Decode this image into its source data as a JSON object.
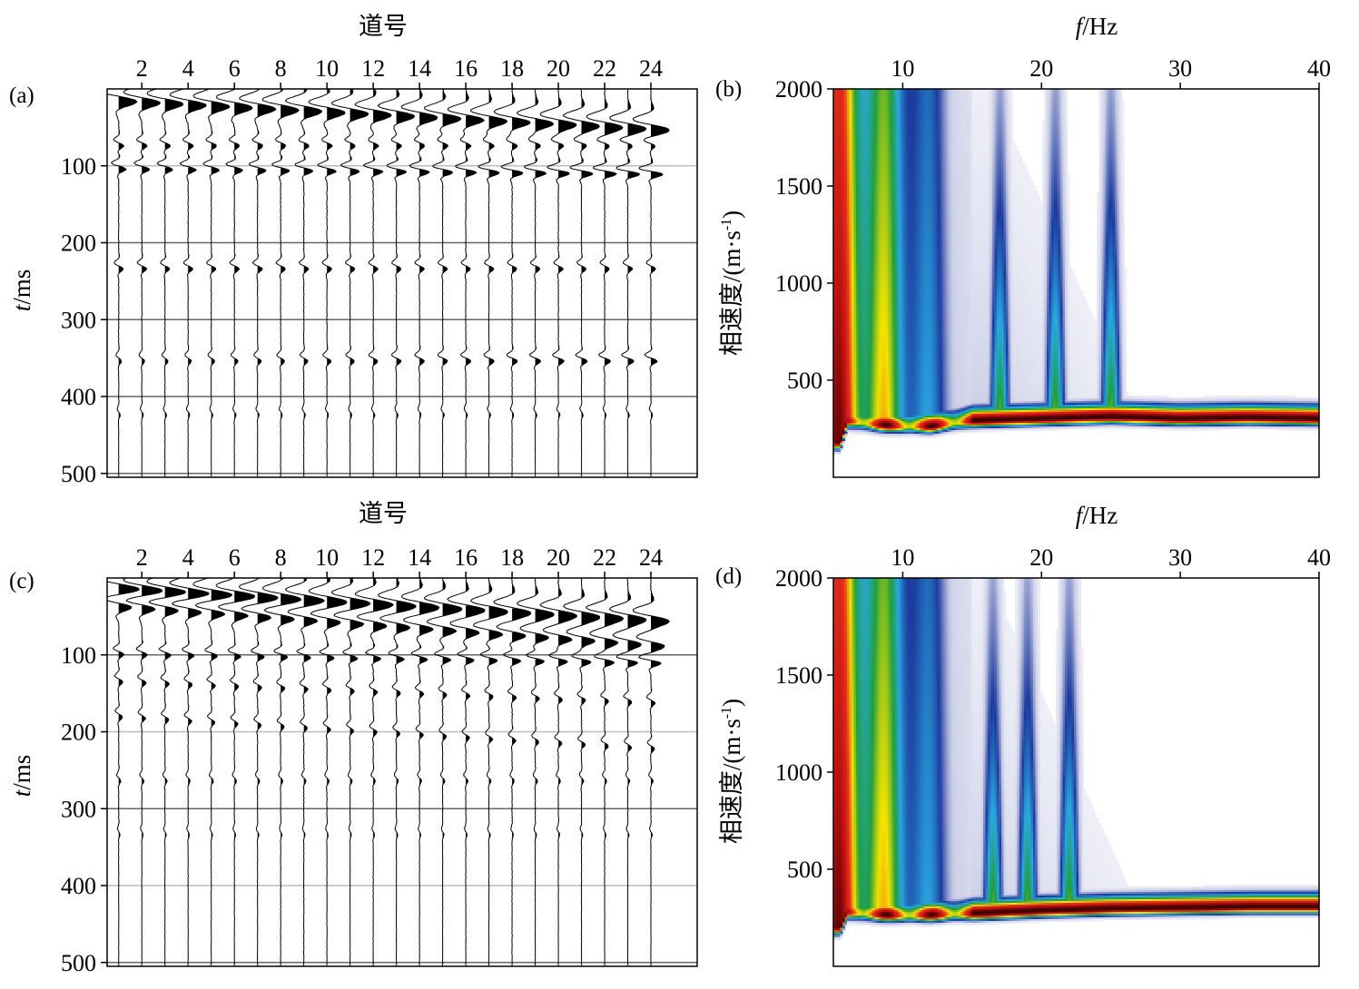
{
  "chart_data": [
    {
      "id": "a",
      "type": "seismic",
      "panel_label": "(a)",
      "xlabel": "道号",
      "ylabel_italic": "t",
      "ylabel_rest": "/ms",
      "x_ticks": [
        2,
        4,
        6,
        8,
        10,
        12,
        14,
        16,
        18,
        20,
        22,
        24
      ],
      "x_tick_labels": [
        "2",
        "4",
        "6",
        "8",
        "10",
        "12",
        "14",
        "16",
        "18",
        "20",
        "22",
        "24"
      ],
      "xlim": [
        0.5,
        26
      ],
      "y_ticks": [
        100,
        200,
        300,
        400,
        500
      ],
      "y_tick_labels": [
        "100",
        "200",
        "300",
        "400",
        "500"
      ],
      "ylim": [
        0,
        505
      ],
      "traces": 24,
      "grid": true
    },
    {
      "id": "b",
      "type": "heatmap",
      "panel_label": "(b)",
      "xlabel_italic": "f",
      "xlabel_rest": "/Hz",
      "ylabel": "相速度/(m·s",
      "ylabel_sup": "-1",
      "ylabel_close": ")",
      "x_ticks": [
        10,
        20,
        30,
        40
      ],
      "x_tick_labels": [
        "10",
        "20",
        "30",
        "40"
      ],
      "xlim": [
        5,
        40
      ],
      "y_ticks": [
        500,
        1000,
        1500,
        2000
      ],
      "y_tick_labels": [
        "500",
        "1000",
        "1500",
        "2000"
      ],
      "ylim": [
        0,
        2000
      ],
      "colormap": [
        "#ffffff",
        "#c9cce6",
        "#1c3a9e",
        "#29a8e0",
        "#1f9e3c",
        "#f5e400",
        "#e8321e",
        "#c01010",
        "#3a0000"
      ],
      "dispersion_curve": {
        "f": [
          5.5,
          6,
          7,
          8,
          10,
          12,
          15,
          20,
          25,
          30,
          35,
          40
        ],
        "v": [
          180,
          290,
          280,
          270,
          260,
          260,
          290,
          300,
          310,
          300,
          305,
          300
        ]
      }
    },
    {
      "id": "c",
      "type": "seismic",
      "panel_label": "(c)",
      "xlabel": "道号",
      "ylabel_italic": "t",
      "ylabel_rest": "/ms",
      "x_ticks": [
        2,
        4,
        6,
        8,
        10,
        12,
        14,
        16,
        18,
        20,
        22,
        24
      ],
      "x_tick_labels": [
        "2",
        "4",
        "6",
        "8",
        "10",
        "12",
        "14",
        "16",
        "18",
        "20",
        "22",
        "24"
      ],
      "xlim": [
        0.5,
        26
      ],
      "y_ticks": [
        100,
        200,
        300,
        400,
        500
      ],
      "y_tick_labels": [
        "100",
        "200",
        "300",
        "400",
        "500"
      ],
      "ylim": [
        0,
        505
      ],
      "traces": 24,
      "grid": true
    },
    {
      "id": "d",
      "type": "heatmap",
      "panel_label": "(d)",
      "xlabel_italic": "f",
      "xlabel_rest": "/Hz",
      "ylabel": "相速度/(m·s",
      "ylabel_sup": "-1",
      "ylabel_close": ")",
      "x_ticks": [
        10,
        20,
        30,
        40
      ],
      "x_tick_labels": [
        "10",
        "20",
        "30",
        "40"
      ],
      "xlim": [
        5,
        40
      ],
      "y_ticks": [
        500,
        1000,
        1500,
        2000
      ],
      "y_tick_labels": [
        "500",
        "1000",
        "1500",
        "2000"
      ],
      "ylim": [
        0,
        2000
      ],
      "colormap": [
        "#ffffff",
        "#c9cce6",
        "#1c3a9e",
        "#29a8e0",
        "#1f9e3c",
        "#f5e400",
        "#e8321e",
        "#c01010",
        "#3a0000"
      ],
      "dispersion_curve": {
        "f": [
          5.5,
          6,
          7,
          8,
          10,
          12,
          15,
          20,
          25,
          30,
          35,
          40
        ],
        "v": [
          200,
          280,
          270,
          265,
          260,
          262,
          270,
          285,
          295,
          300,
          305,
          305
        ]
      }
    }
  ]
}
